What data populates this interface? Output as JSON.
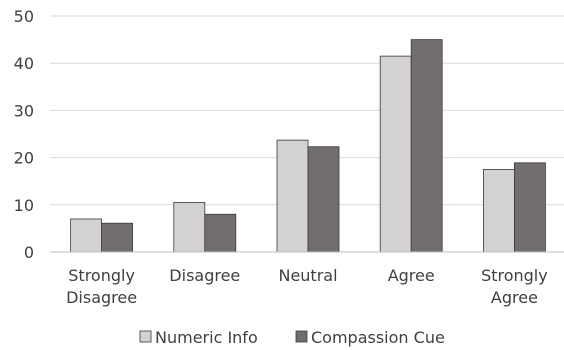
{
  "chart_data": {
    "type": "bar",
    "title": "",
    "xlabel": "",
    "ylabel": "",
    "categories": [
      [
        "Strongly",
        "Disagree"
      ],
      [
        "Disagree"
      ],
      [
        "Neutral"
      ],
      [
        "Agree"
      ],
      [
        "Strongly",
        "Agree"
      ]
    ],
    "series": [
      {
        "name": "Numeric Info",
        "values": [
          7,
          10.5,
          23.7,
          41.5,
          17.5
        ],
        "color": "#d3d1d1"
      },
      {
        "name": "Compassion Cue",
        "values": [
          6.1,
          8,
          22.3,
          45,
          18.9
        ],
        "color": "#736e6e"
      }
    ],
    "ylim": [
      0,
      50
    ],
    "yticks": [
      0,
      10,
      20,
      30,
      40,
      50
    ],
    "grid": true,
    "legend_position": "bottom"
  }
}
